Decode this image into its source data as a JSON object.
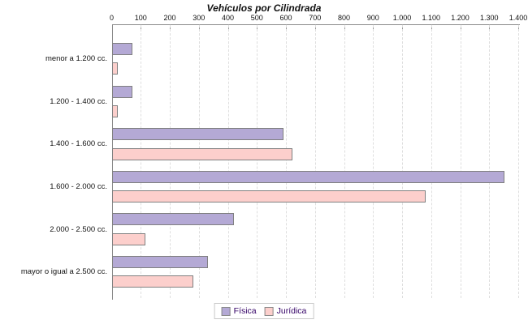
{
  "title": "Vehículos por Cilindrada",
  "chart_data": {
    "type": "bar",
    "orientation": "horizontal",
    "title": "Vehículos por Cilindrada",
    "categories": [
      "menor a 1.200 cc.",
      "1.200 - 1.400 cc.",
      "1.400 - 1.600 cc.",
      "1.600 - 2.000 cc.",
      "2.000 - 2.500 cc.",
      "mayor o igual a 2.500 cc."
    ],
    "series": [
      {
        "name": "Física",
        "color": "#b4a9d5",
        "values": [
          70,
          70,
          590,
          1350,
          420,
          330
        ]
      },
      {
        "name": "Jurídica",
        "color": "#fccfcc",
        "values": [
          20,
          20,
          620,
          1080,
          115,
          280
        ]
      }
    ],
    "xlim": [
      0,
      1400
    ],
    "x_tick_labels": [
      "0",
      "100",
      "200",
      "300",
      "400",
      "500",
      "600",
      "700",
      "800",
      "900",
      "1.000",
      "1.100",
      "1.200",
      "1.300",
      "1.400"
    ],
    "x_tick_step": 100,
    "grid": true,
    "legend_position": "bottom-center"
  },
  "colors": {
    "bar_border": "#808080",
    "axis": "#8a8a8a",
    "gridline": "#dedede",
    "legend_text": "#330066",
    "legend_border": "#c8c8c8",
    "text": "#111111",
    "background": "#ffffff"
  }
}
